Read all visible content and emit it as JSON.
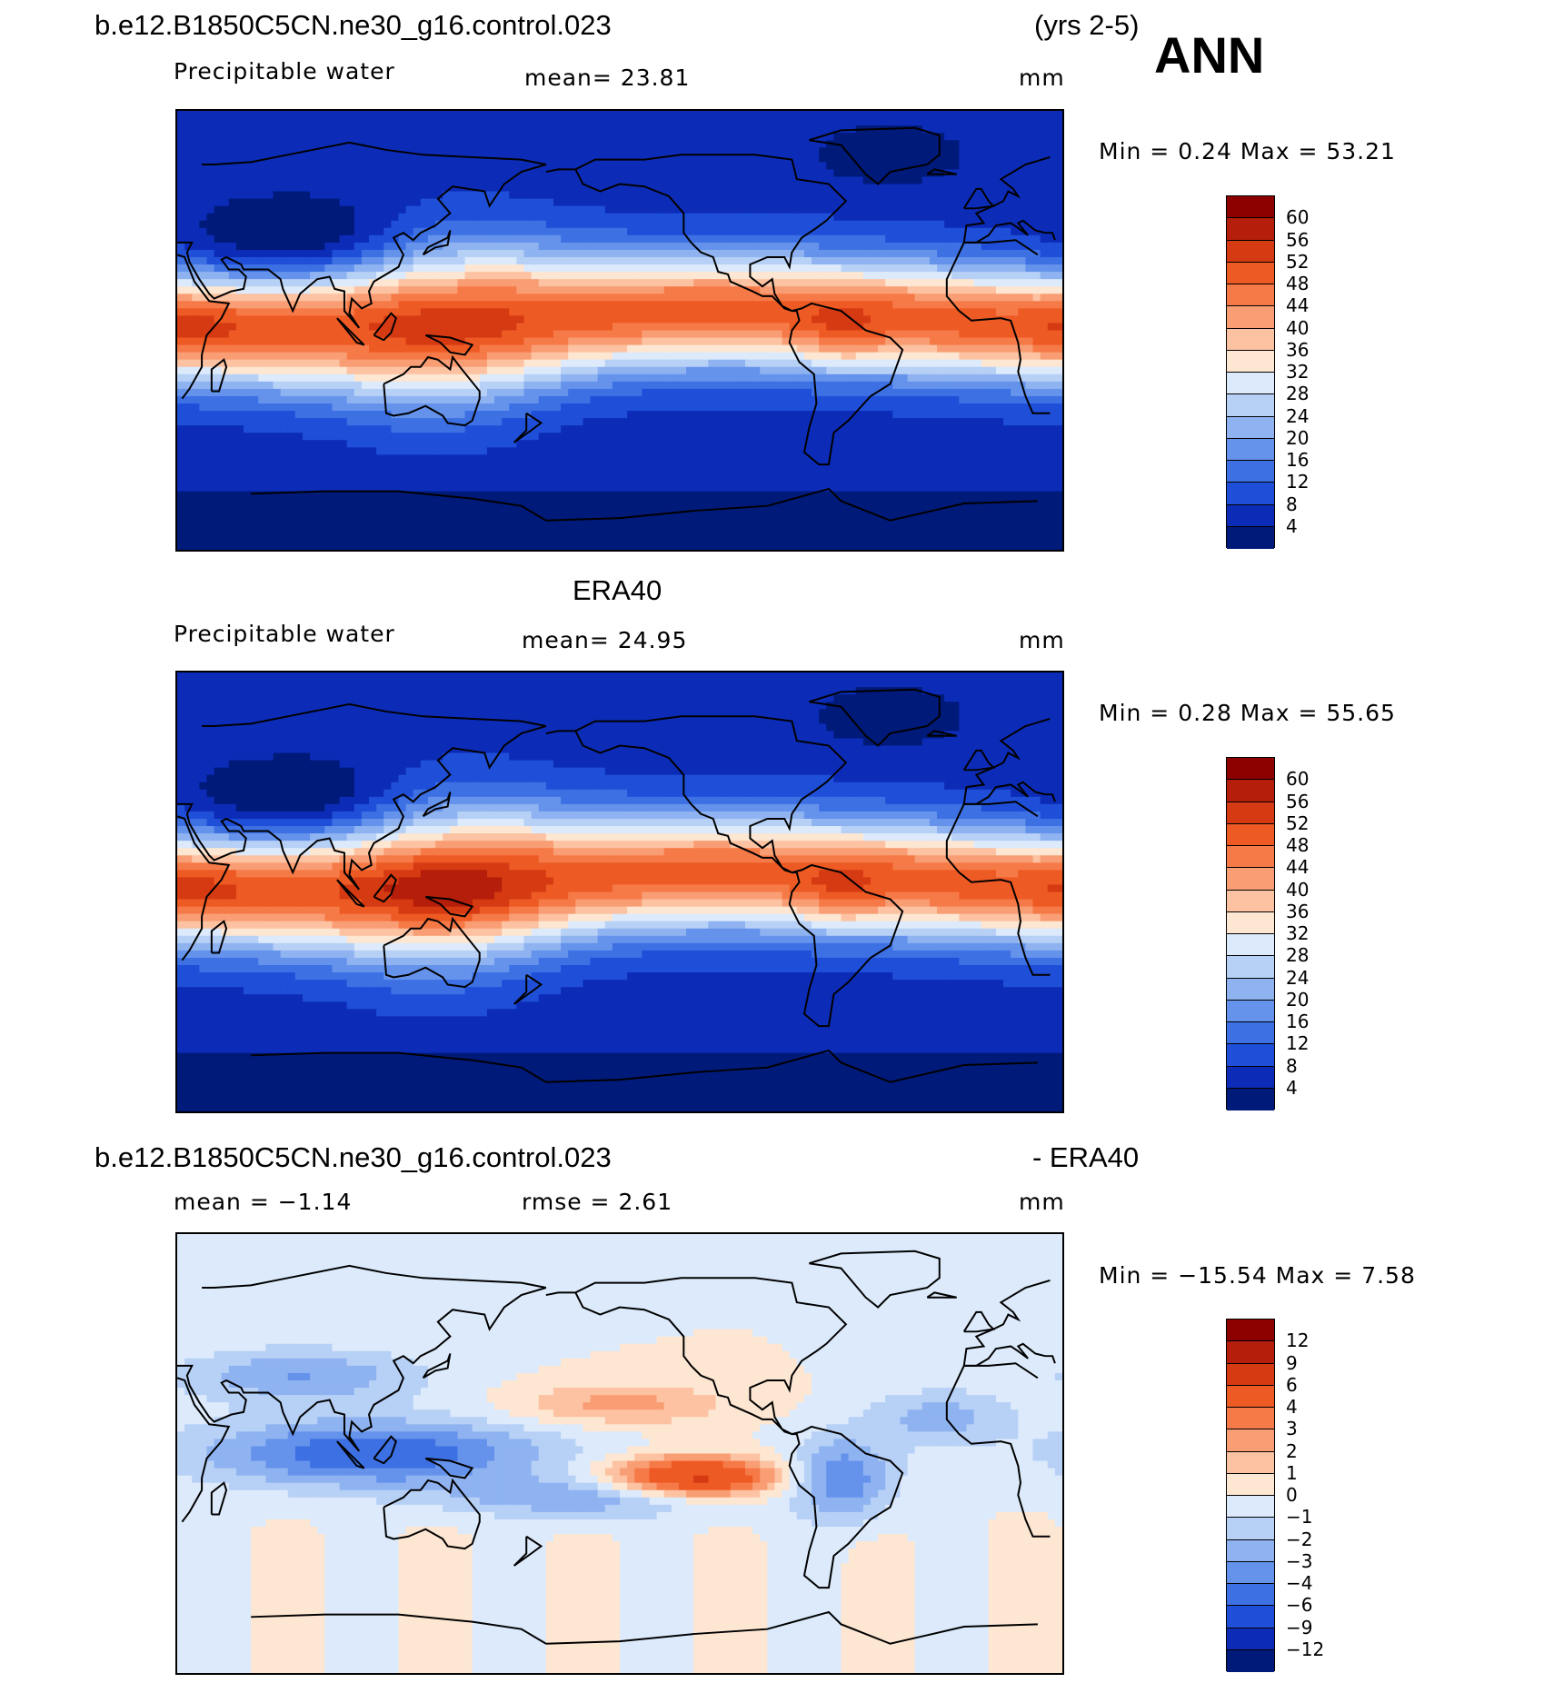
{
  "header": {
    "case_name": "b.e12.B1850C5CN.ne30_g16.control.023",
    "years": "(yrs 2-5)",
    "season": "ANN"
  },
  "panels": [
    {
      "id": "model",
      "variable": "Precipitable water",
      "stat_text": "mean=   23.81",
      "units": "mm",
      "minmax_text": "Min  =     0.24  Max  =    53.21",
      "colorbar_labels": [
        "60",
        "56",
        "52",
        "48",
        "44",
        "40",
        "36",
        "32",
        "28",
        "24",
        "20",
        "16",
        "12",
        "8",
        "4"
      ],
      "colorbar_colors": [
        "#8c0000",
        "#b41e0a",
        "#d63a12",
        "#ee5a24",
        "#f67a48",
        "#f99e74",
        "#fcc2a2",
        "#fde6d2",
        "#dceafb",
        "#b7d0f6",
        "#8fb3f1",
        "#6593ec",
        "#3d70e3",
        "#1f4fd8",
        "#0c2cb8",
        "#001a7a"
      ],
      "field_kind": "total"
    },
    {
      "id": "obs",
      "title": "ERA40",
      "variable": "Precipitable water",
      "stat_text": "mean=   24.95",
      "units": "mm",
      "minmax_text": "Min  =     0.28  Max  =    55.65",
      "colorbar_labels": [
        "60",
        "56",
        "52",
        "48",
        "44",
        "40",
        "36",
        "32",
        "28",
        "24",
        "20",
        "16",
        "12",
        "8",
        "4"
      ],
      "colorbar_colors": [
        "#8c0000",
        "#b41e0a",
        "#d63a12",
        "#ee5a24",
        "#f67a48",
        "#f99e74",
        "#fcc2a2",
        "#fde6d2",
        "#dceafb",
        "#b7d0f6",
        "#8fb3f1",
        "#6593ec",
        "#3d70e3",
        "#1f4fd8",
        "#0c2cb8",
        "#001a7a"
      ],
      "field_kind": "total_obs"
    },
    {
      "id": "diff",
      "title_left": "b.e12.B1850C5CN.ne30_g16.control.023",
      "title_right": "- ERA40",
      "stat_mean_text": "mean =    −1.14",
      "stat_rmse_text": "rmse  =     2.61",
      "units": "mm",
      "minmax_text": "Min  =  −15.54  Max  =     7.58",
      "colorbar_labels": [
        "12",
        "9",
        "6",
        "4",
        "3",
        "2",
        "1",
        "0",
        "−1",
        "−2",
        "−3",
        "−4",
        "−6",
        "−9",
        "−12"
      ],
      "colorbar_colors": [
        "#8c0000",
        "#b41e0a",
        "#d63a12",
        "#ee5a24",
        "#f67a48",
        "#f99e74",
        "#fcc2a2",
        "#fde6d2",
        "#dceafb",
        "#b7d0f6",
        "#8fb3f1",
        "#6593ec",
        "#3d70e3",
        "#1f4fd8",
        "#0c2cb8",
        "#001a7a"
      ],
      "field_kind": "diff"
    }
  ]
}
